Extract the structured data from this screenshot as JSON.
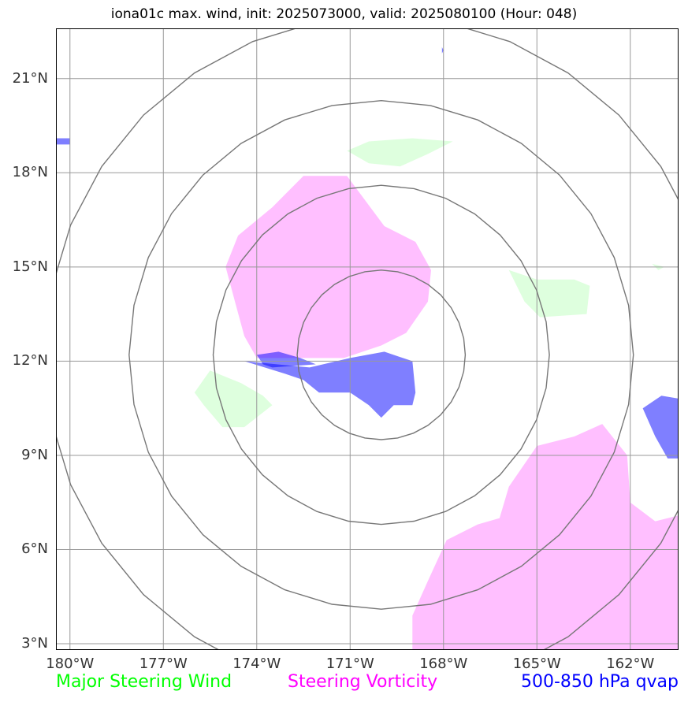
{
  "title": "iona01c max. wind, init: 2025073000, valid: 2025080100 (Hour: 048)",
  "map": {
    "lon_range": [
      -180.45,
      -160.45
    ],
    "lat_range": [
      2.8,
      22.6
    ],
    "lon_ticks": [
      {
        "value": -180,
        "label": "180°W"
      },
      {
        "value": -177,
        "label": "177°W"
      },
      {
        "value": -174,
        "label": "174°W"
      },
      {
        "value": -171,
        "label": "171°W"
      },
      {
        "value": -168,
        "label": "168°W"
      },
      {
        "value": -165,
        "label": "165°W"
      },
      {
        "value": -162,
        "label": "162°W"
      }
    ],
    "lat_ticks": [
      {
        "value": 21,
        "label": "21°N"
      },
      {
        "value": 18,
        "label": "18°N"
      },
      {
        "value": 15,
        "label": "15°N"
      },
      {
        "value": 12,
        "label": "12°N"
      },
      {
        "value": 9,
        "label": "9°N"
      },
      {
        "value": 6,
        "label": "6°N"
      },
      {
        "value": 3,
        "label": "3°N"
      }
    ],
    "range_ring_center": {
      "lon": -170.0,
      "lat": 12.2
    },
    "range_rings_deg": [
      2.7,
      5.4,
      8.1,
      10.8
    ],
    "colors": {
      "major_steering_wind": "#00ff00",
      "steering_vorticity": "#ff00ff",
      "qvap": "#0000ff",
      "grid": "#999999",
      "rings": "#777777"
    },
    "shaded_regions": [
      {
        "name": "vorticity-blob-central",
        "layer": "steering_vorticity",
        "points": [
          [
            -175.0,
            15.0
          ],
          [
            -174.6,
            16.0
          ],
          [
            -173.5,
            16.9
          ],
          [
            -172.5,
            17.9
          ],
          [
            -171.1,
            17.9
          ],
          [
            -169.9,
            16.3
          ],
          [
            -168.9,
            15.8
          ],
          [
            -168.4,
            14.9
          ],
          [
            -168.5,
            13.9
          ],
          [
            -169.2,
            12.9
          ],
          [
            -170.0,
            12.5
          ],
          [
            -171.2,
            12.1
          ],
          [
            -173.0,
            12.1
          ],
          [
            -174.0,
            12.1
          ],
          [
            -174.4,
            12.8
          ],
          [
            -174.7,
            13.9
          ]
        ]
      },
      {
        "name": "vorticity-blob-southeast",
        "layer": "steering_vorticity",
        "points": [
          [
            -169.0,
            2.7
          ],
          [
            -169.0,
            3.9
          ],
          [
            -168.5,
            5.0
          ],
          [
            -167.9,
            6.3
          ],
          [
            -166.9,
            6.8
          ],
          [
            -166.2,
            7.0
          ],
          [
            -165.9,
            8.0
          ],
          [
            -165.0,
            9.3
          ],
          [
            -163.8,
            9.6
          ],
          [
            -162.9,
            10.0
          ],
          [
            -162.1,
            9.0
          ],
          [
            -162.0,
            7.5
          ],
          [
            -161.2,
            6.9
          ],
          [
            -160.4,
            7.1
          ],
          [
            -160.4,
            2.7
          ]
        ]
      },
      {
        "name": "wind-blob-north",
        "layer": "major_steering_wind",
        "points": [
          [
            -170.4,
            19.0
          ],
          [
            -169.0,
            19.1
          ],
          [
            -167.7,
            19.0
          ],
          [
            -168.5,
            18.6
          ],
          [
            -169.4,
            18.2
          ],
          [
            -170.4,
            18.3
          ],
          [
            -171.1,
            18.7
          ]
        ]
      },
      {
        "name": "wind-blob-east",
        "layer": "major_steering_wind",
        "points": [
          [
            -165.0,
            14.6
          ],
          [
            -163.8,
            14.6
          ],
          [
            -163.3,
            14.4
          ],
          [
            -163.4,
            13.5
          ],
          [
            -164.9,
            13.4
          ],
          [
            -165.4,
            13.9
          ],
          [
            -165.9,
            14.9
          ]
        ]
      },
      {
        "name": "wind-blob-southwest",
        "layer": "major_steering_wind",
        "points": [
          [
            -176.0,
            11.0
          ],
          [
            -175.5,
            11.7
          ],
          [
            -174.5,
            11.3
          ],
          [
            -173.8,
            10.9
          ],
          [
            -173.5,
            10.6
          ],
          [
            -174.4,
            9.9
          ],
          [
            -175.1,
            9.9
          ],
          [
            -175.7,
            10.6
          ]
        ]
      },
      {
        "name": "wind-blob-far-east",
        "layer": "major_steering_wind",
        "points": [
          [
            -161.3,
            15.1
          ],
          [
            -160.9,
            15.0
          ],
          [
            -161.1,
            14.9
          ]
        ]
      },
      {
        "name": "qvap-blob-central",
        "layer": "qvap",
        "points": [
          [
            -174.4,
            12.0
          ],
          [
            -172.3,
            11.8
          ],
          [
            -171.0,
            12.1
          ],
          [
            -169.9,
            12.3
          ],
          [
            -169.0,
            12.0
          ],
          [
            -168.9,
            11.0
          ],
          [
            -169.0,
            10.6
          ],
          [
            -169.6,
            10.6
          ],
          [
            -170.0,
            10.2
          ],
          [
            -170.4,
            10.6
          ],
          [
            -171.0,
            11.0
          ],
          [
            -172.0,
            11.0
          ],
          [
            -172.5,
            11.4
          ],
          [
            -173.1,
            11.6
          ]
        ]
      },
      {
        "name": "qvap-blob-overlap",
        "layer": "qvap",
        "points": [
          [
            -174.0,
            12.2
          ],
          [
            -173.3,
            12.3
          ],
          [
            -172.6,
            12.1
          ],
          [
            -172.1,
            11.9
          ],
          [
            -173.5,
            11.8
          ],
          [
            -173.8,
            11.9
          ]
        ]
      },
      {
        "name": "qvap-blob-east",
        "layer": "qvap",
        "points": [
          [
            -160.4,
            10.8
          ],
          [
            -161.0,
            10.9
          ],
          [
            -161.6,
            10.5
          ],
          [
            -161.2,
            9.6
          ],
          [
            -160.8,
            8.9
          ],
          [
            -160.4,
            8.9
          ]
        ]
      },
      {
        "name": "qvap-blob-west",
        "layer": "qvap",
        "points": [
          [
            -180.45,
            19.1
          ],
          [
            -180.0,
            19.1
          ],
          [
            -180.0,
            18.9
          ],
          [
            -180.45,
            18.9
          ]
        ]
      },
      {
        "name": "qvap-dot-north",
        "layer": "qvap",
        "points": [
          [
            -168.05,
            22.0
          ],
          [
            -168.0,
            21.9
          ],
          [
            -168.05,
            21.8
          ]
        ]
      }
    ]
  },
  "legend": [
    {
      "label": "Major Steering Wind",
      "color": "#00ff00"
    },
    {
      "label": "Steering Vorticity",
      "color": "#ff00ff"
    },
    {
      "label": "500-850 hPa qvap",
      "color": "#0000ff"
    }
  ]
}
